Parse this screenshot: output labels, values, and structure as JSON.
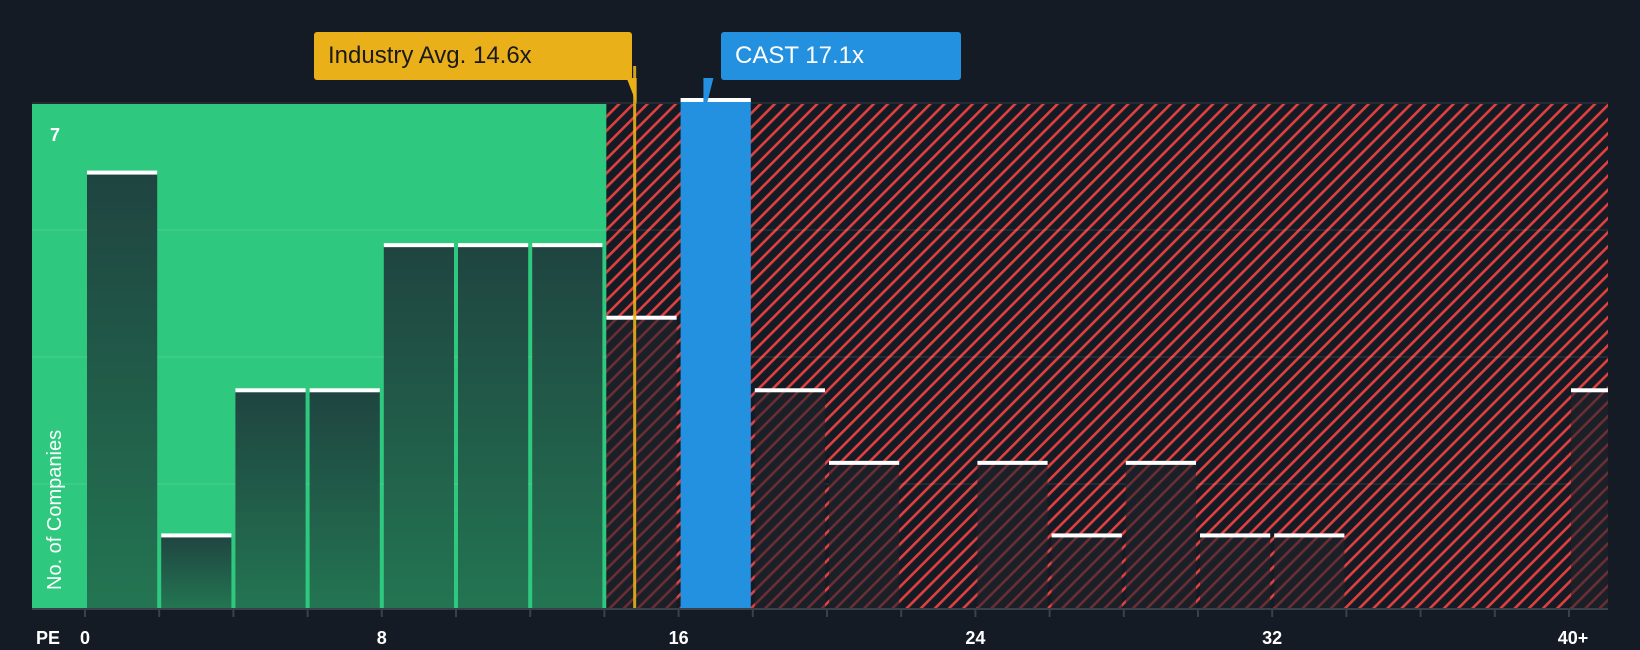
{
  "chart_data": {
    "type": "bar",
    "title": "",
    "xlabel": "PE",
    "ylabel": "No. of Companies",
    "x_ticks": [
      "0",
      "8",
      "16",
      "24",
      "32",
      "40+"
    ],
    "bin_width": 2,
    "bins": [
      {
        "from": 0,
        "to": 2,
        "count": 6
      },
      {
        "from": 2,
        "to": 4,
        "count": 1
      },
      {
        "from": 4,
        "to": 6,
        "count": 3
      },
      {
        "from": 6,
        "to": 8,
        "count": 3
      },
      {
        "from": 8,
        "to": 10,
        "count": 5
      },
      {
        "from": 10,
        "to": 12,
        "count": 5
      },
      {
        "from": 12,
        "to": 14,
        "count": 5
      },
      {
        "from": 14,
        "to": 16,
        "count": 4
      },
      {
        "from": 16,
        "to": 18,
        "count": 7,
        "highlight": true
      },
      {
        "from": 18,
        "to": 20,
        "count": 3
      },
      {
        "from": 20,
        "to": 22,
        "count": 2
      },
      {
        "from": 22,
        "to": 24,
        "count": 0
      },
      {
        "from": 24,
        "to": 26,
        "count": 2
      },
      {
        "from": 26,
        "to": 28,
        "count": 1
      },
      {
        "from": 28,
        "to": 30,
        "count": 2
      },
      {
        "from": 30,
        "to": 32,
        "count": 1
      },
      {
        "from": 32,
        "to": 34,
        "count": 1
      },
      {
        "from": 34,
        "to": 36,
        "count": 0
      },
      {
        "from": 36,
        "to": 38,
        "count": 0
      },
      {
        "from": 38,
        "to": 40,
        "count": 0
      },
      {
        "from": 40,
        "to": null,
        "label": "40+",
        "count": 3
      }
    ],
    "ylim": [
      0,
      7
    ],
    "y_max_label": "7",
    "grid": true,
    "annotations": [
      {
        "label": "Industry Avg. 14.6x",
        "value": 14.6,
        "color": "#e9b01a"
      },
      {
        "label": "CAST 17.1x",
        "value": 17.1,
        "color": "#2391e0"
      }
    ],
    "regions": [
      {
        "name": "below-average",
        "from": 0,
        "to": 14,
        "color": "#2ec97f"
      },
      {
        "name": "above-average",
        "from": 14,
        "to": 42,
        "color": "#e0403f",
        "pattern": "hatched"
      }
    ]
  },
  "labels": {
    "industry_avg": "Industry Avg. 14.6x",
    "company": "CAST 17.1x",
    "y_axis": "No. of Companies",
    "x_axis": "PE",
    "y_max": "7",
    "ticks": [
      "0",
      "8",
      "16",
      "24",
      "32",
      "40+"
    ]
  },
  "colors": {
    "background": "#151b24",
    "green": "#2ec97f",
    "green_bar": "#1f4a3e",
    "red_hatch": "#e0403f",
    "highlight": "#2391e0",
    "industry": "#e9b01a"
  }
}
